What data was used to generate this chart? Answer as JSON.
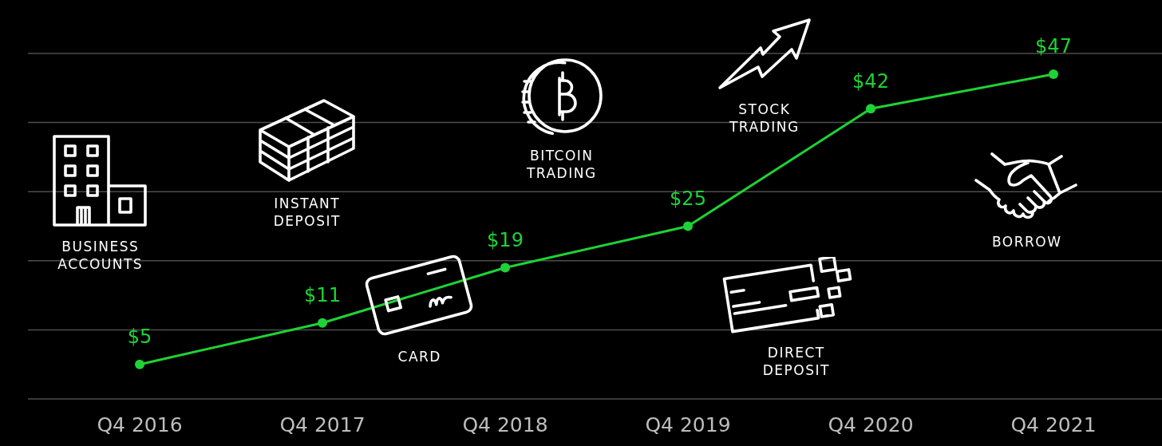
{
  "chart_data": {
    "type": "line",
    "categories": [
      "Q4 2016",
      "Q4 2017",
      "Q4 2018",
      "Q4 2019",
      "Q4 2020",
      "Q4 2021"
    ],
    "values": [
      5,
      11,
      19,
      25,
      42,
      47
    ],
    "value_labels": [
      "$5",
      "$11",
      "$19",
      "$25",
      "$42",
      "$47"
    ],
    "color": "#1ed335",
    "ylim": [
      0,
      50
    ],
    "yticks": [
      {
        "value": 0,
        "label": null
      },
      {
        "value": 10,
        "label": null
      },
      {
        "value": 20,
        "label": null
      },
      {
        "value": 30,
        "label": null
      },
      {
        "value": 40,
        "label": null
      },
      {
        "value": 50,
        "label": null
      }
    ],
    "grid": "y",
    "tick_labels": "x",
    "marker": "circle",
    "line_style": "solid",
    "annotations": [
      "BUSINESS ACCOUNTS",
      "INSTANT DEPOSIT",
      "CARD",
      "BITCOIN TRADING",
      "STOCK TRADING",
      "DIRECT DEPOSIT",
      "BORROW"
    ]
  }
}
